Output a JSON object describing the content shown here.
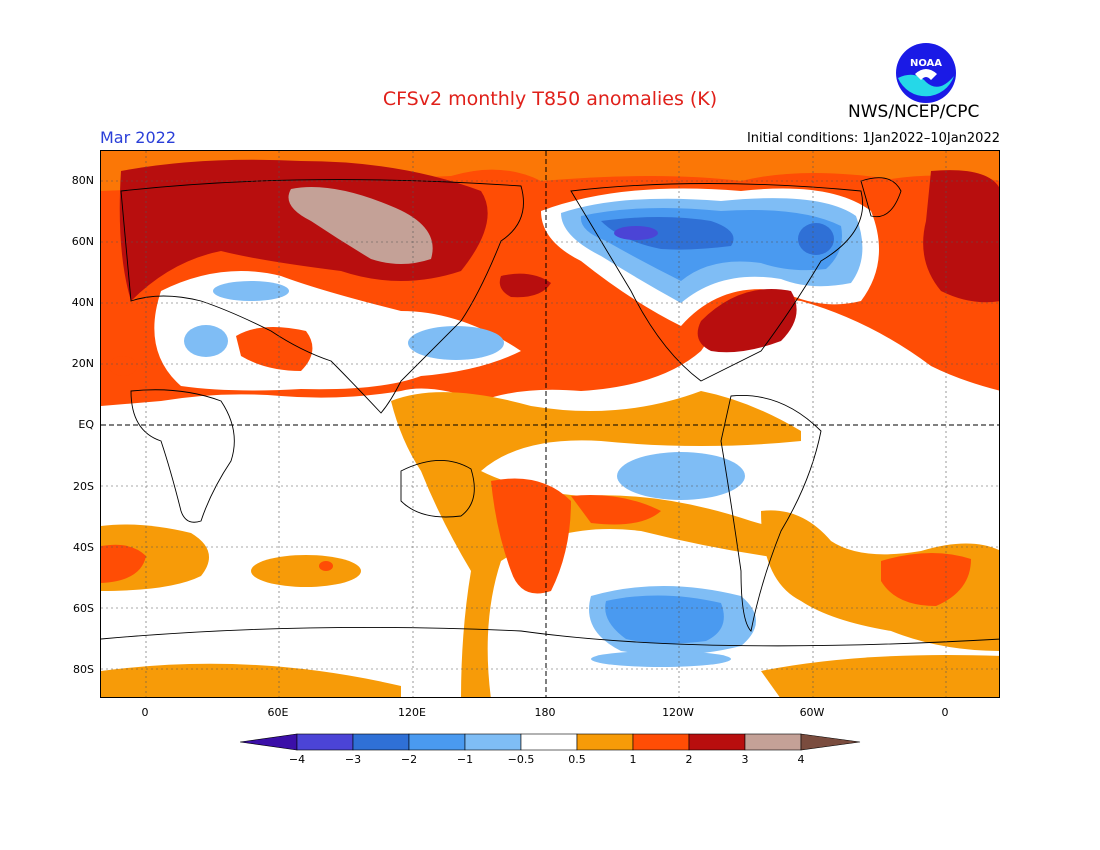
{
  "header": {
    "title": "CFSv2 monthly T850 anomalies (K)",
    "valid_month": "Mar 2022",
    "initial_conditions": "Initial conditions: 1Jan2022–10Jan2022",
    "organization": "NWS/NCEP/CPC",
    "logo_text": "NOAA"
  },
  "map": {
    "lat_labels": [
      "80N",
      "60N",
      "40N",
      "20N",
      "EQ",
      "20S",
      "40S",
      "60S",
      "80S"
    ],
    "lon_labels": [
      "0",
      "60E",
      "120E",
      "180",
      "120W",
      "60W",
      "0"
    ],
    "colors": {
      "blue-4": "#3b0fa8",
      "blue-3": "#4b44d6",
      "blue-2": "#2f70d6",
      "blue-1": "#4a9af0",
      "blue-05": "#7fbdf5",
      "neutral": "#ffffff",
      "orange-05": "#f79b08",
      "orange-1": "#ff4d05",
      "red-2": "#b80e0e",
      "brown-3": "#c4a197",
      "brown-4": "#7a4c3e"
    }
  },
  "colorbar": {
    "labels": [
      "−4",
      "−3",
      "−2",
      "−1",
      "−0.5",
      "0.5",
      "1",
      "2",
      "3",
      "4"
    ]
  }
}
